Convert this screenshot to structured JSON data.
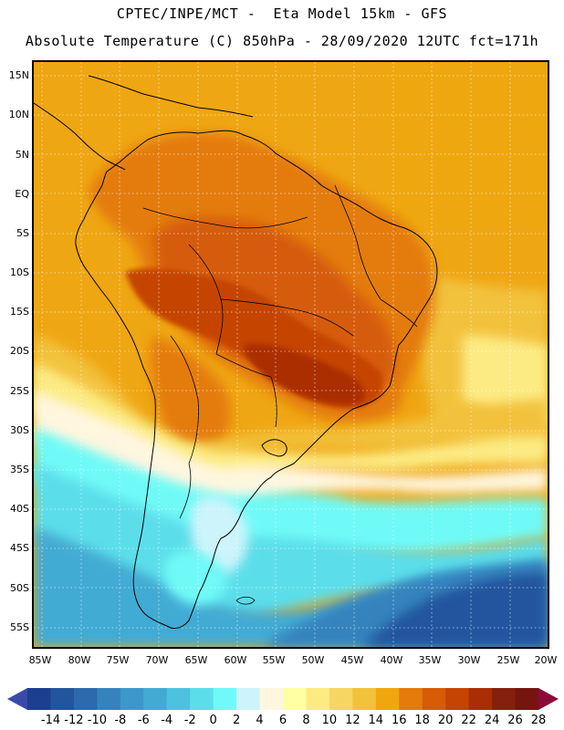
{
  "header": {
    "line1": "CPTEC/INPE/MCT -  Eta Model 15km - GFS",
    "line2": "Absolute Temperature (C) 850hPa - 28/09/2020 12UTC fct=171h"
  },
  "axes": {
    "lat_labels": [
      "15N",
      "10N",
      "5N",
      "EQ",
      "5S",
      "10S",
      "15S",
      "20S",
      "25S",
      "30S",
      "35S",
      "40S",
      "45S",
      "50S",
      "55S"
    ],
    "lon_labels": [
      "85W",
      "80W",
      "75W",
      "70W",
      "65W",
      "60W",
      "55W",
      "50W",
      "45W",
      "40W",
      "35W",
      "30W",
      "25W",
      "20W"
    ]
  },
  "colorbar": {
    "unit": "C",
    "labels": [
      "-14",
      "-12",
      "-10",
      "-8",
      "-6",
      "-4",
      "-2",
      "0",
      "2",
      "4",
      "6",
      "8",
      "10",
      "12",
      "14",
      "16",
      "18",
      "20",
      "22",
      "24",
      "26",
      "28"
    ],
    "colors": [
      "#1c3f8f",
      "#23549e",
      "#2c6aad",
      "#3583bd",
      "#3c98c9",
      "#42abd4",
      "#4cc2de",
      "#5cdeea",
      "#6ffaf7",
      "#cdf4fb",
      "#fff6df",
      "#ffffa3",
      "#fceb83",
      "#f7d562",
      "#f2c23c",
      "#f0a70d",
      "#e47b0b",
      "#d65c07",
      "#c54404",
      "#aa2d06",
      "#86200e",
      "#76150f"
    ],
    "under_color": "#3a4aa8",
    "over_color": "#8b0a3a"
  },
  "map": {
    "background_color": "#efa613",
    "legend_reference": "Absolute Temperature (C) 850hPa"
  }
}
